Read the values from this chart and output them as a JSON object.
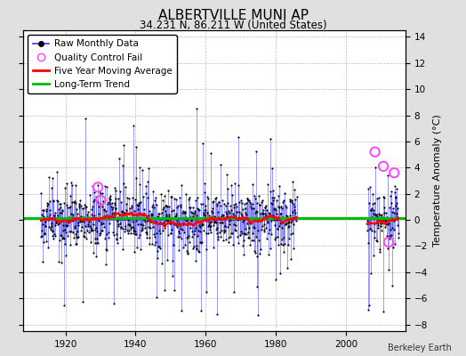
{
  "title": "ALBERTVILLE MUNI AP",
  "subtitle": "34.231 N, 86.211 W (United States)",
  "ylabel": "Temperature Anomaly (°C)",
  "attribution": "Berkeley Earth",
  "ylim": [
    -8.5,
    14.5
  ],
  "yticks": [
    -8,
    -6,
    -4,
    -2,
    0,
    2,
    4,
    6,
    8,
    10,
    12,
    14
  ],
  "xlim": [
    1908,
    2017
  ],
  "xticks": [
    1920,
    1940,
    1960,
    1980,
    2000
  ],
  "raw_line_color": "#4444ff",
  "raw_dot_color": "#000000",
  "qc_fail_color": "#ff44ff",
  "moving_avg_color": "#ff0000",
  "trend_color": "#00bb00",
  "background_color": "#e0e0e0",
  "plot_bg_color": "#ffffff",
  "grid_color": "#bbbbbb",
  "title_fontsize": 11,
  "subtitle_fontsize": 8.5,
  "legend_fontsize": 7.5,
  "tick_fontsize": 7.5,
  "ylabel_fontsize": 8
}
